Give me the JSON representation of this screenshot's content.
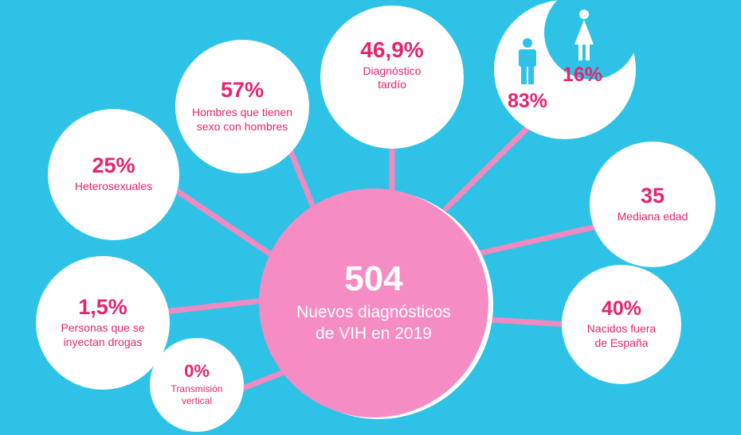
{
  "colors": {
    "background": "#2ec3e6",
    "accent": "#e6246e",
    "center": "#f58cc4",
    "bubble": "#ffffff",
    "line": "#f08ac0"
  },
  "center": {
    "number": "504",
    "line1": "Nuevos diagnósticos",
    "line2": "de VIH en 2019"
  },
  "stats": {
    "hetero": {
      "value": "25%",
      "label": "Heterosexuales"
    },
    "hsh": {
      "value": "57%",
      "label1": "Hombres que tienen",
      "label2": "sexo con hombres"
    },
    "tardio": {
      "value": "46,9%",
      "label1": "Diagnóstico",
      "label2": "tardío"
    },
    "gender": {
      "men": "83%",
      "women": "16%",
      "men_icon": "man-icon",
      "women_icon": "woman-icon"
    },
    "edad": {
      "value": "35",
      "label": "Mediana edad"
    },
    "fuera": {
      "value": "40%",
      "label1": "Nacidos fuera",
      "label2": "de España"
    },
    "drogas": {
      "value": "1,5%",
      "label1": "Personas que se",
      "label2": "inyectan drogas"
    },
    "vertical": {
      "value": "0%",
      "label1": "Transmisión",
      "label2": "vertical"
    }
  }
}
